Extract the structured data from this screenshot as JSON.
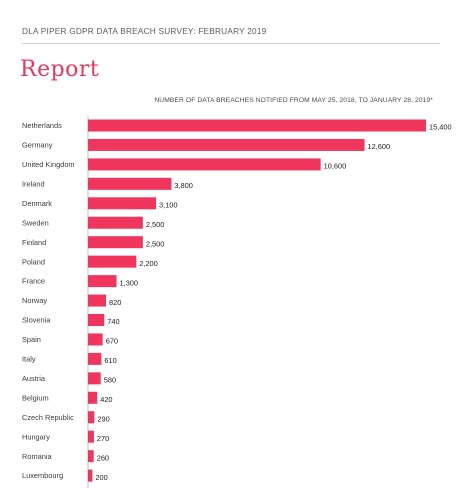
{
  "header": {
    "survey_title": "DLA PIPER GDPR DATA BREACH SURVEY: FEBRUARY 2019",
    "page_title": "Report"
  },
  "colors": {
    "accent": "#e8365d",
    "bar": "#f0365c"
  },
  "chart_data": {
    "type": "bar",
    "orientation": "horizontal",
    "title": "NUMBER OF DATA BREACHES NOTIFIED FROM MAY 25, 2018, TO JANUARY 28, 2019*",
    "xlabel": "",
    "ylabel": "",
    "xlim": [
      0,
      15400
    ],
    "grid": false,
    "categories": [
      "Netherlands",
      "Germany",
      "United Kingdom",
      "Ireland",
      "Denmark",
      "Sweden",
      "Finland",
      "Poland",
      "France",
      "Norway",
      "Slovenia",
      "Spain",
      "Italy",
      "Austria",
      "Belgium",
      "Czech Republic",
      "Hungary",
      "Romania",
      "Luxembourg"
    ],
    "values": [
      15400,
      12600,
      10600,
      3800,
      3100,
      2500,
      2500,
      2200,
      1300,
      820,
      740,
      670,
      610,
      580,
      420,
      290,
      270,
      260,
      200
    ],
    "value_labels": [
      "15,400",
      "12,600",
      "10,600",
      "3,800",
      "3,100",
      "2,500",
      "2,500",
      "2,200",
      "1,300",
      "820",
      "740",
      "670",
      "610",
      "580",
      "420",
      "290",
      "270",
      "260",
      "200"
    ]
  }
}
